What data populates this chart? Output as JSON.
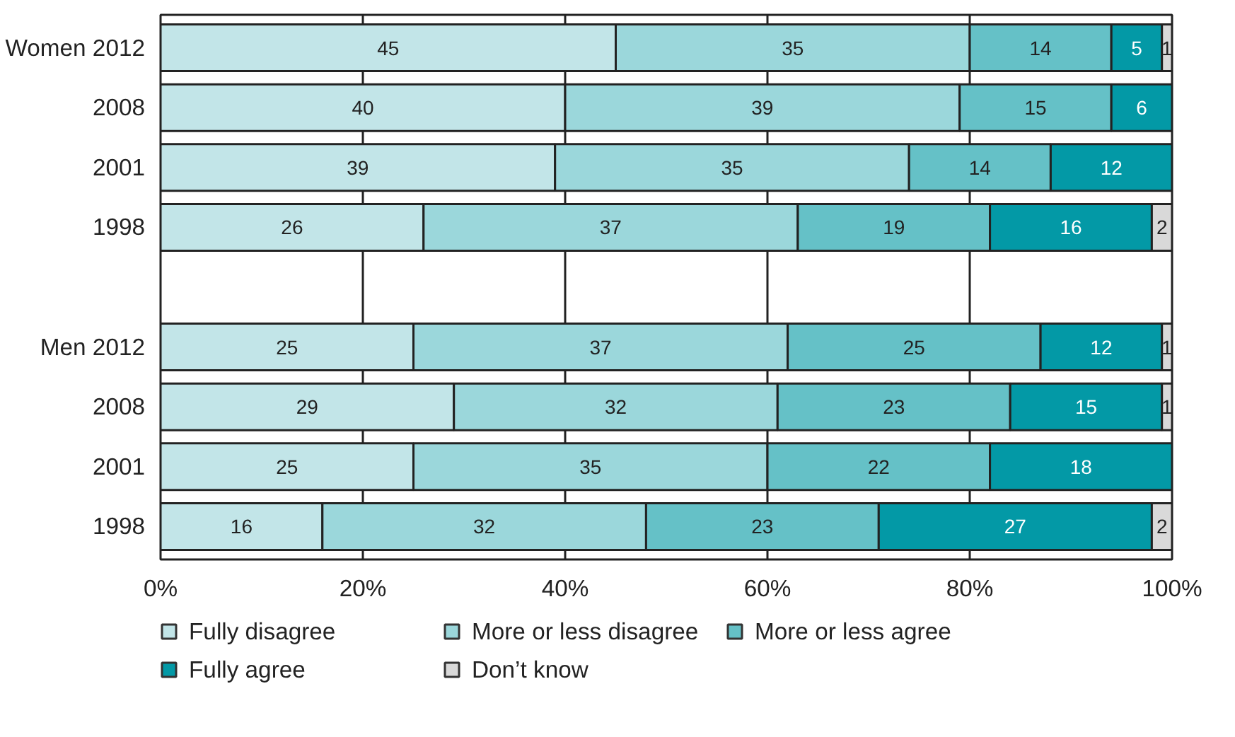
{
  "chart_data": {
    "type": "bar",
    "orientation": "horizontal",
    "stacked": true,
    "categories": [
      "Women 2012",
      "2008",
      "2001",
      "1998",
      null,
      "Men 2012",
      "2008",
      "2001",
      "1998"
    ],
    "series": [
      {
        "name": "Fully disagree",
        "color": "#c2e5e8",
        "values": [
          45,
          40,
          39,
          26,
          null,
          25,
          29,
          25,
          16
        ]
      },
      {
        "name": "More or less disagree",
        "color": "#9bd7db",
        "values": [
          35,
          39,
          35,
          37,
          null,
          37,
          32,
          35,
          32
        ]
      },
      {
        "name": "More or less agree",
        "color": "#65c1c7",
        "values": [
          14,
          15,
          14,
          19,
          null,
          25,
          23,
          22,
          23
        ]
      },
      {
        "name": "Fully agree",
        "color": "#0399a6",
        "values": [
          5,
          6,
          12,
          16,
          null,
          12,
          15,
          18,
          27
        ]
      },
      {
        "name": "Don’t know",
        "color": "#d9d9d9",
        "values": [
          1,
          null,
          null,
          2,
          null,
          1,
          1,
          null,
          2
        ]
      }
    ],
    "xlim": [
      0,
      100
    ],
    "xticks": [
      {
        "value": 0,
        "label": "0%"
      },
      {
        "value": 20,
        "label": "20%"
      },
      {
        "value": 40,
        "label": "40%"
      },
      {
        "value": 60,
        "label": "60%"
      },
      {
        "value": 80,
        "label": "80%"
      },
      {
        "value": 100,
        "label": "100%"
      }
    ],
    "grid": "x",
    "legend": "bottom",
    "data_labels": true
  }
}
